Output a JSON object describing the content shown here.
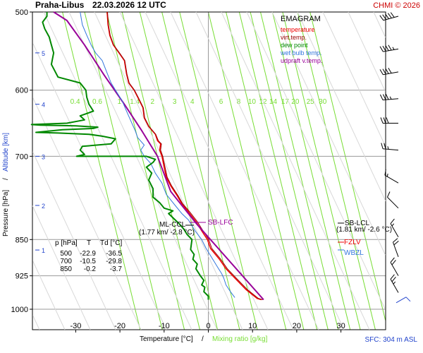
{
  "header": {
    "station": "Praha-Libus",
    "datetime": "22.03.2026 12 UTC",
    "copyright": "CHMI © 2026"
  },
  "legend": {
    "title": "EMAGRAM",
    "items": [
      {
        "label": "temperature",
        "color": "#ee0000"
      },
      {
        "label": "virt.temp.",
        "color": "#990000"
      },
      {
        "label": "dew point",
        "color": "#008800"
      },
      {
        "label": "wet bulb temp.",
        "color": "#3377dd"
      },
      {
        "label": "udpraft v.temp.",
        "color": "#990099"
      }
    ]
  },
  "table": {
    "headers": [
      "p [hPa]",
      "T",
      "Td [°C]"
    ],
    "rows": [
      [
        "500",
        "-22.9",
        "-36.5"
      ],
      [
        "700",
        "-10.5",
        "-29.8"
      ],
      [
        "850",
        "-0.2",
        "-3.7"
      ]
    ]
  },
  "annotations": {
    "sb_lfc": "SB-LFC",
    "ml_ccl": "ML-CCL",
    "ml_ccl_value": "(1.77 km/ -2.8 °C)",
    "sb_lcl": "SB-LCL",
    "sb_lcl_value": "(1.81 km/ -2.6 °C)",
    "fzlv": "FZLV",
    "wbzl": "WBZL",
    "sfc": "SFC: 304 m ASL"
  },
  "colors": {
    "temperature": "#ee0000",
    "virt_temp": "#990000",
    "dew_point": "#008800",
    "wet_bulb": "#3377dd",
    "updraft": "#990099",
    "mixing": "#77dd33",
    "altitude": "#2244cc",
    "header_red": "#cc0000"
  },
  "chart_data": {
    "type": "line",
    "title": "Praha-Libus 22.03.2026 12 UTC - EMAGRAM",
    "xlabel": "Temperature [°C]",
    "xlabel_extra": "Mixing ratio [g/kg]",
    "ylabel": "Pressure [hPa]",
    "ylabel_extra": "Altitude [km]",
    "xlim": [
      -40,
      34
    ],
    "ylim": [
      1015,
      500
    ],
    "x_ticks": [
      -30,
      -20,
      -10,
      0,
      10,
      20,
      30
    ],
    "x_tick_labels": [
      "-30",
      "-20",
      "-10",
      "0",
      "10",
      "20",
      "30"
    ],
    "y_ticks": [
      500,
      600,
      700,
      850,
      925,
      1000
    ],
    "y_tick_labels": [
      "500",
      "600",
      "700",
      "850",
      "925",
      "1000"
    ],
    "altitude_ticks": [
      {
        "p": 871,
        "km": "1"
      },
      {
        "p": 785,
        "km": "2"
      },
      {
        "p": 700,
        "km": "3"
      },
      {
        "p": 620,
        "km": "4"
      },
      {
        "p": 550,
        "km": "5"
      }
    ],
    "mixing_ratios": [
      {
        "label": "0.4",
        "t_top": -33
      },
      {
        "label": "0.6",
        "t_top": -28
      },
      {
        "label": "1",
        "t_top": -23
      },
      {
        "label": "1.4",
        "t_top": -19.5
      },
      {
        "label": "2",
        "t_top": -15.5
      },
      {
        "label": "3",
        "t_top": -10.5
      },
      {
        "label": "4",
        "t_top": -6.5
      },
      {
        "label": "6",
        "t_top": 0
      },
      {
        "label": "8",
        "t_top": 4
      },
      {
        "label": "10",
        "t_top": 7
      },
      {
        "label": "12",
        "t_top": 9.5
      },
      {
        "label": "14",
        "t_top": 11.8
      },
      {
        "label": "17",
        "t_top": 14.5
      },
      {
        "label": "20",
        "t_top": 16.8
      },
      {
        "label": "25",
        "t_top": 20.2
      },
      {
        "label": "30",
        "t_top": 23
      }
    ],
    "series": [
      {
        "name": "temperature",
        "key": "temperature",
        "points": [
          [
            12,
            978
          ],
          [
            11,
            975
          ],
          [
            8.5,
            955
          ],
          [
            6,
            930
          ],
          [
            4,
            910
          ],
          [
            2.5,
            890
          ],
          [
            0.5,
            868
          ],
          [
            -0.2,
            850
          ],
          [
            -1.5,
            833
          ],
          [
            -2.8,
            815
          ],
          [
            -4.5,
            797
          ],
          [
            -6,
            782
          ],
          [
            -7,
            768
          ],
          [
            -8.5,
            750
          ],
          [
            -9.5,
            735
          ],
          [
            -10,
            718
          ],
          [
            -10.5,
            700
          ],
          [
            -11,
            690
          ],
          [
            -10.8,
            680
          ],
          [
            -11.5,
            675
          ],
          [
            -12,
            665
          ],
          [
            -13.5,
            653
          ],
          [
            -14.5,
            640
          ],
          [
            -14.8,
            625
          ],
          [
            -15.8,
            612
          ],
          [
            -16.8,
            600
          ],
          [
            -18,
            590
          ],
          [
            -18.5,
            578
          ],
          [
            -19,
            560
          ],
          [
            -20.2,
            550
          ],
          [
            -21.5,
            540
          ],
          [
            -22.3,
            528
          ],
          [
            -22.7,
            515
          ],
          [
            -22.9,
            500
          ]
        ]
      },
      {
        "name": "virt.temp.",
        "key": "virt_temp",
        "points": [
          [
            12.3,
            978
          ],
          [
            11.3,
            975
          ],
          [
            8.8,
            955
          ],
          [
            6.3,
            930
          ],
          [
            4.3,
            910
          ],
          [
            2.8,
            890
          ],
          [
            0.8,
            868
          ],
          [
            0.1,
            850
          ],
          [
            -1.2,
            833
          ],
          [
            -2.5,
            815
          ],
          [
            -4.2,
            797
          ],
          [
            -5.8,
            782
          ],
          [
            -6.8,
            768
          ],
          [
            -8.3,
            750
          ],
          [
            -9.3,
            735
          ],
          [
            -9.8,
            718
          ],
          [
            -10.3,
            700
          ],
          [
            -10.8,
            690
          ],
          [
            -10.6,
            680
          ],
          [
            -11.3,
            675
          ],
          [
            -11.9,
            665
          ],
          [
            -13.4,
            653
          ],
          [
            -14.4,
            640
          ],
          [
            -14.7,
            625
          ],
          [
            -15.7,
            612
          ],
          [
            -16.7,
            600
          ],
          [
            -17.9,
            590
          ],
          [
            -18.4,
            578
          ],
          [
            -18.9,
            560
          ],
          [
            -20.1,
            550
          ],
          [
            -21.4,
            540
          ],
          [
            -22.2,
            528
          ],
          [
            -22.6,
            515
          ],
          [
            -22.8,
            500
          ]
        ]
      },
      {
        "name": "udpraft v.temp.",
        "key": "updraft",
        "points": [
          [
            12.5,
            978
          ],
          [
            -2.6,
            820
          ],
          [
            -5.5,
            790
          ],
          [
            -8.5,
            760
          ],
          [
            -11.5,
            700
          ],
          [
            -15,
            660
          ],
          [
            -19,
            620
          ],
          [
            -23.5,
            580
          ],
          [
            -28,
            540
          ],
          [
            -32,
            510
          ],
          [
            -35,
            500
          ]
        ]
      },
      {
        "name": "wet bulb temp.",
        "key": "wet_bulb",
        "points": [
          [
            6,
            973
          ],
          [
            5,
            960
          ],
          [
            4,
            945
          ],
          [
            3.5,
            930
          ],
          [
            3,
            920
          ],
          [
            2,
            905
          ],
          [
            1,
            890
          ],
          [
            -0.5,
            868
          ],
          [
            -1.5,
            850
          ],
          [
            -3,
            833
          ],
          [
            -4.5,
            812
          ],
          [
            -6,
            800
          ],
          [
            -7.5,
            785
          ],
          [
            -9.5,
            765
          ],
          [
            -10.5,
            745
          ],
          [
            -12,
            728
          ],
          [
            -13,
            712
          ],
          [
            -14.5,
            700
          ],
          [
            -15.3,
            690
          ],
          [
            -14.5,
            682
          ],
          [
            -16,
            670
          ],
          [
            -16.5,
            660
          ],
          [
            -17.5,
            645
          ],
          [
            -18.5,
            630
          ],
          [
            -19.5,
            615
          ],
          [
            -21,
            600
          ],
          [
            -22,
            590
          ],
          [
            -23,
            575
          ],
          [
            -24,
            560
          ],
          [
            -25.5,
            550
          ],
          [
            -26.5,
            540
          ],
          [
            -27.5,
            528
          ],
          [
            -28.5,
            515
          ],
          [
            -29,
            500
          ]
        ]
      },
      {
        "name": "dew point",
        "key": "dew_point",
        "points": [
          [
            0,
            978
          ],
          [
            0,
            970
          ],
          [
            -1,
            960
          ],
          [
            -0.8,
            950
          ],
          [
            -1.5,
            945
          ],
          [
            -1,
            935
          ],
          [
            -1.8,
            925
          ],
          [
            -2.8,
            910
          ],
          [
            -2.5,
            900
          ],
          [
            -3.5,
            890
          ],
          [
            -3.2,
            880
          ],
          [
            -4,
            870
          ],
          [
            -3.7,
            850
          ],
          [
            -4.8,
            840
          ],
          [
            -5.5,
            830
          ],
          [
            -6.5,
            820
          ],
          [
            -7.5,
            812
          ],
          [
            -9,
            800
          ],
          [
            -8,
            795
          ],
          [
            -10,
            790
          ],
          [
            -11,
            780
          ],
          [
            -12.5,
            770
          ],
          [
            -12.5,
            755
          ],
          [
            -13.5,
            740
          ],
          [
            -12.8,
            728
          ],
          [
            -14,
            718
          ],
          [
            -12.5,
            710
          ],
          [
            -12,
            705
          ],
          [
            -14,
            700
          ],
          [
            -20,
            700
          ],
          [
            -29.8,
            700
          ],
          [
            -28,
            697
          ],
          [
            -29,
            690
          ],
          [
            -28.5,
            684
          ],
          [
            -22,
            680
          ],
          [
            -21,
            672
          ],
          [
            -24,
            668
          ],
          [
            -27,
            665
          ],
          [
            -34,
            663
          ],
          [
            -39,
            662
          ],
          [
            -33,
            658
          ],
          [
            -26,
            656
          ],
          [
            -25,
            654
          ],
          [
            -30,
            652
          ],
          [
            -38,
            651
          ],
          [
            -40,
            650
          ],
          [
            -32,
            648
          ],
          [
            -28,
            643
          ],
          [
            -29,
            637
          ],
          [
            -26,
            630
          ],
          [
            -27,
            620
          ],
          [
            -27.5,
            610
          ],
          [
            -27.7,
            600
          ],
          [
            -29,
            590
          ],
          [
            -34,
            582
          ],
          [
            -35.5,
            565
          ],
          [
            -35,
            550
          ],
          [
            -35.5,
            540
          ],
          [
            -36,
            530
          ],
          [
            -37,
            520
          ],
          [
            -37.5,
            512
          ],
          [
            -36.5,
            505
          ],
          [
            -36.5,
            500
          ]
        ]
      }
    ],
    "wind_barbs": [
      {
        "p": 505,
        "dir": 255,
        "kt": 50
      },
      {
        "p": 545,
        "dir": 260,
        "kt": 45
      },
      {
        "p": 575,
        "dir": 260,
        "kt": 40
      },
      {
        "p": 612,
        "dir": 265,
        "kt": 35
      },
      {
        "p": 648,
        "dir": 270,
        "kt": 30
      },
      {
        "p": 690,
        "dir": 275,
        "kt": 25
      },
      {
        "p": 745,
        "dir": 300,
        "kt": 15
      },
      {
        "p": 790,
        "dir": 315,
        "kt": 10
      },
      {
        "p": 845,
        "dir": 330,
        "kt": 15
      },
      {
        "p": 885,
        "dir": 340,
        "kt": 20
      },
      {
        "p": 925,
        "dir": 330,
        "kt": 20
      },
      {
        "p": 962,
        "dir": 330,
        "kt": 25
      }
    ]
  }
}
